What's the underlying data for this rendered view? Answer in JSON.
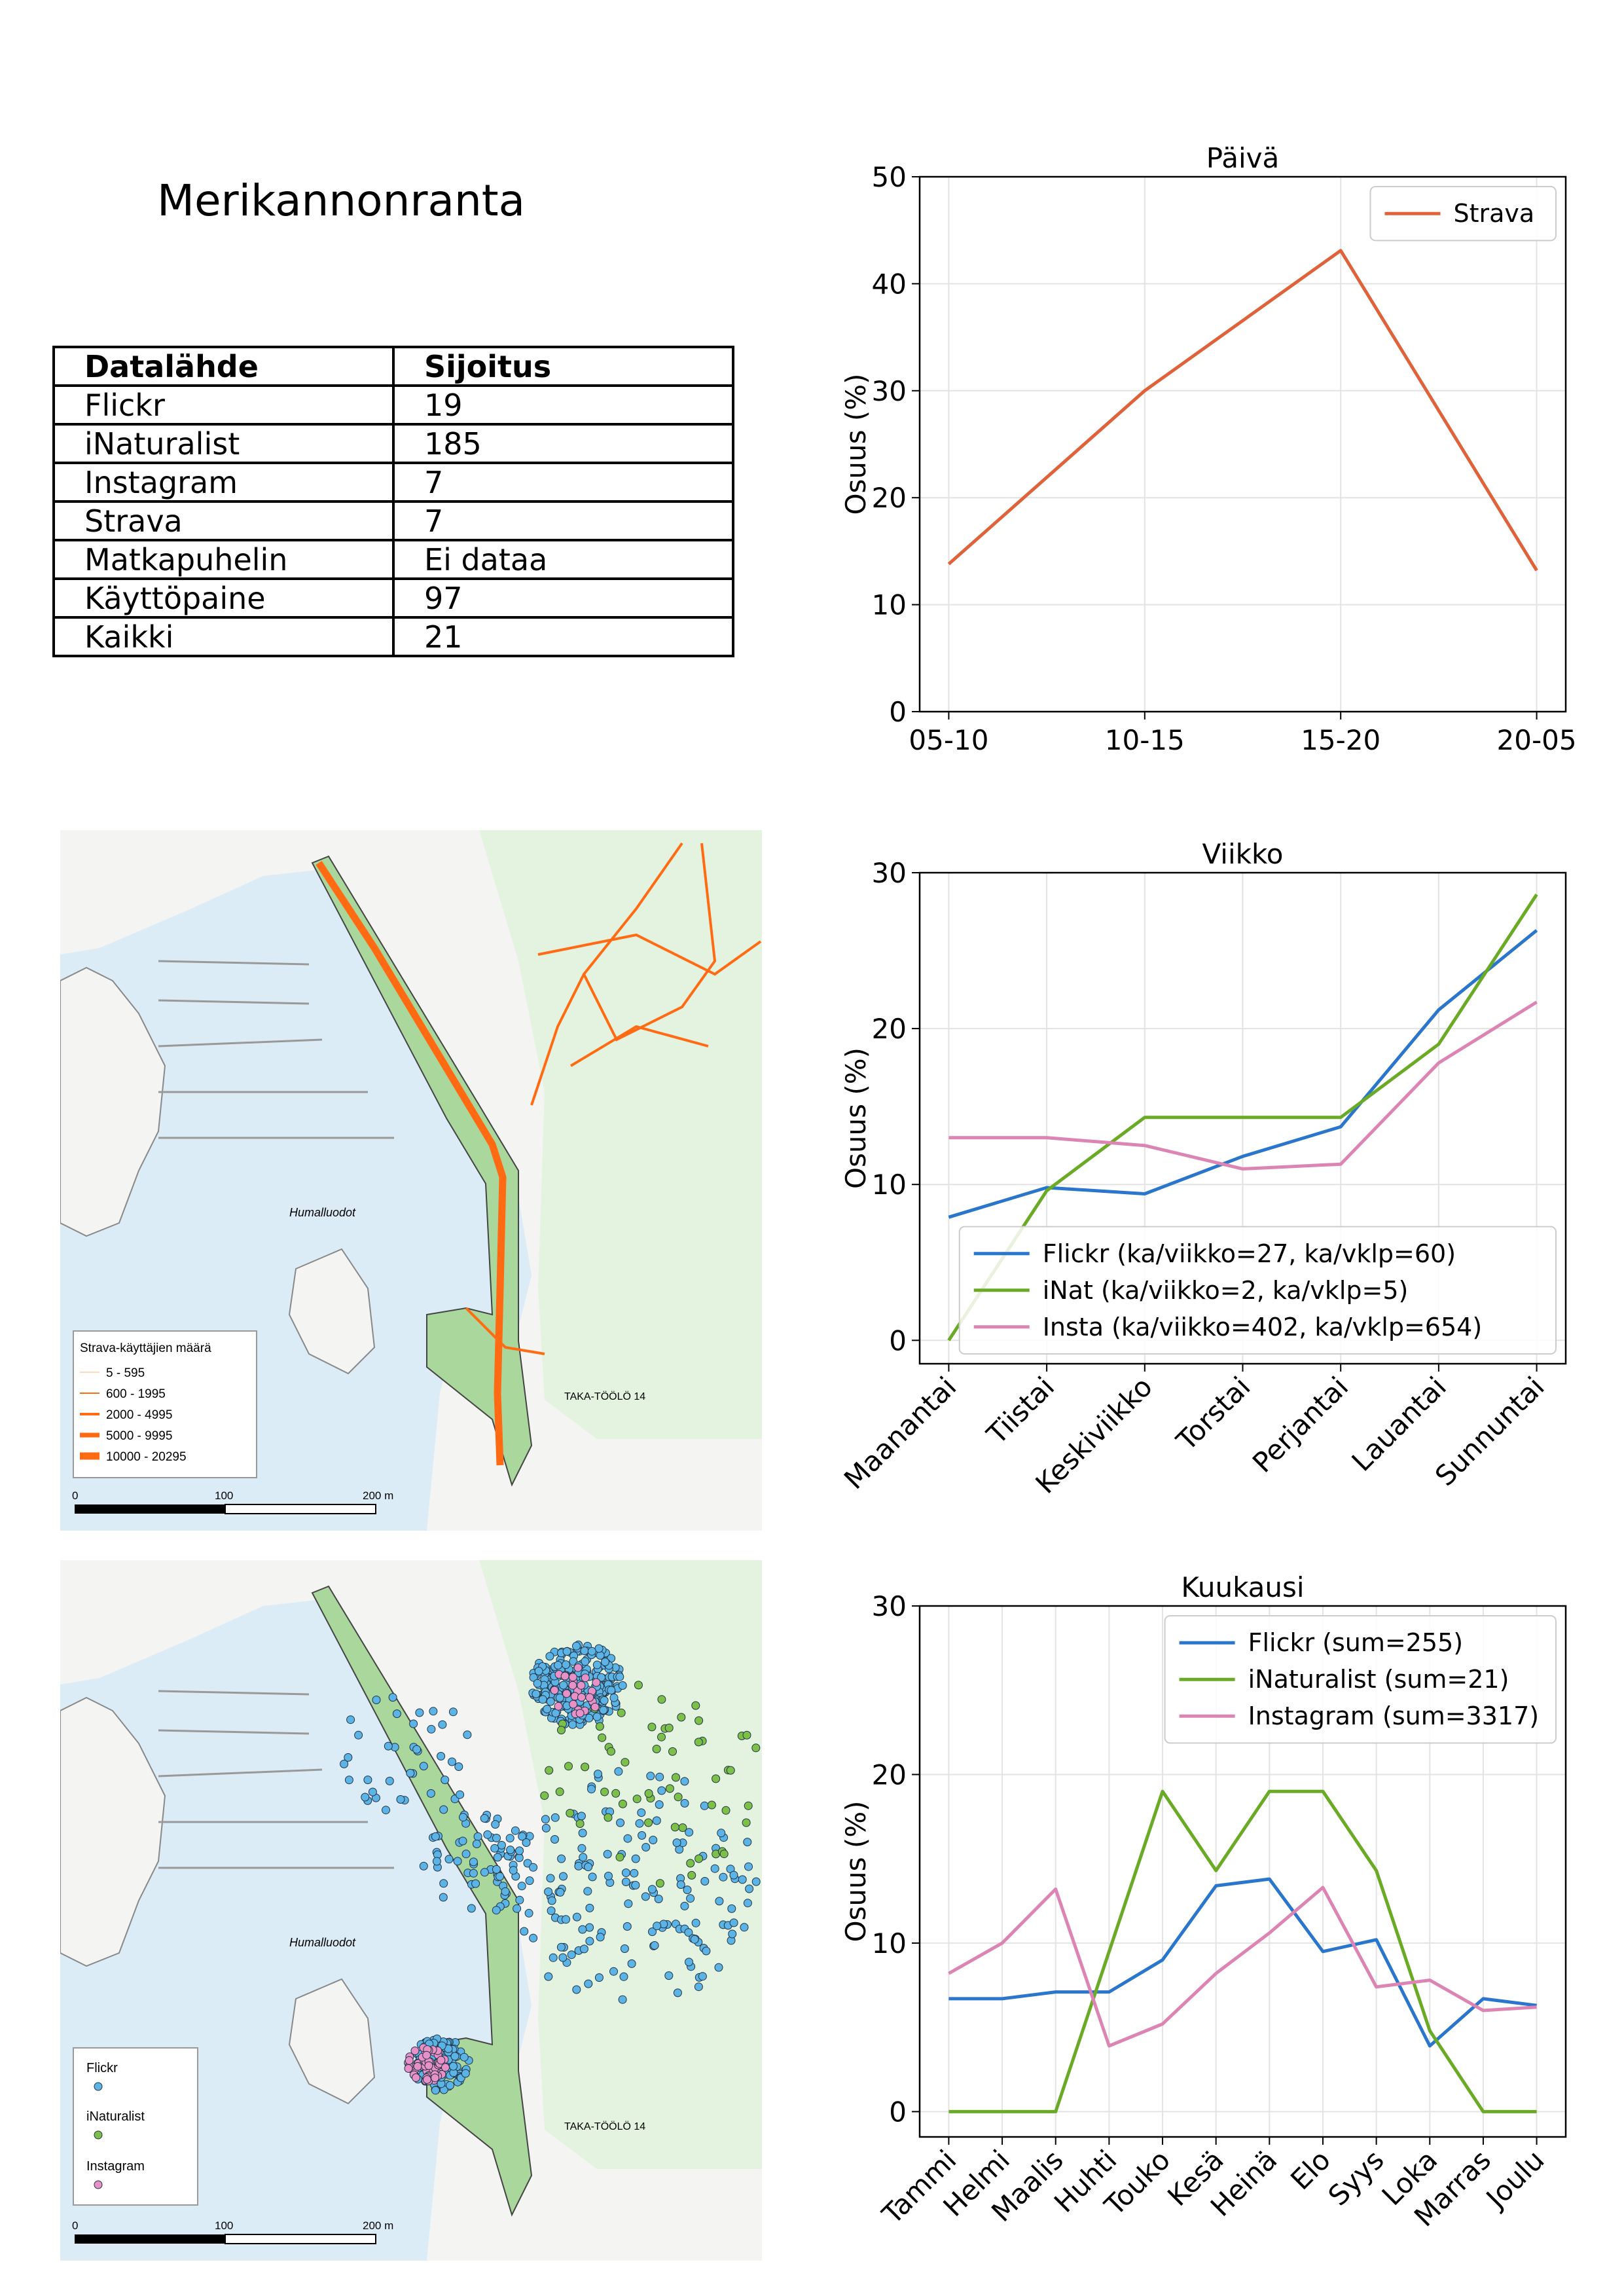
{
  "title": "Merikannonranta",
  "table": {
    "headers": [
      "Datalähde",
      "Sijoitus"
    ],
    "rows": [
      [
        "Flickr",
        "19"
      ],
      [
        "iNaturalist",
        "185"
      ],
      [
        "Instagram",
        "7"
      ],
      [
        "Strava",
        "7"
      ],
      [
        "Matkapuhelin",
        "Ei dataa"
      ],
      [
        "Käyttöpaine",
        "97"
      ],
      [
        "Kaikki",
        "21"
      ]
    ]
  },
  "map_strava": {
    "legend_title": "Strava-käyttäjien määrä",
    "legend_items": [
      "5 - 595",
      "600 - 1995",
      "2000 - 4995",
      "5000 - 9995",
      "10000 - 20295"
    ],
    "scale_labels": [
      "0",
      "100",
      "200 m"
    ],
    "place_labels": [
      "Humalluodot",
      "TAKA-TÖÖLÖ 14"
    ]
  },
  "map_points": {
    "legend_items": [
      "Flickr",
      "iNaturalist",
      "Instagram"
    ],
    "scale_labels": [
      "0",
      "100",
      "200 m"
    ],
    "place_labels": [
      "Humalluodot",
      "TAKA-TÖÖLÖ 14"
    ]
  },
  "colors": {
    "strava": "#e0623a",
    "flickr": "#2a76cc",
    "inat": "#6aaa25",
    "insta": "#dc84b3",
    "route": "#ff6a13",
    "water": "#dcecf7",
    "park": "#e3f3df"
  },
  "chart_data": [
    {
      "type": "line",
      "title": "Päivä",
      "categories": [
        "05-10",
        "10-15",
        "15-20",
        "20-05"
      ],
      "ylabel": "Osuus (%)",
      "ylim": [
        0,
        50
      ],
      "yticks": [
        0,
        10,
        20,
        30,
        40,
        50
      ],
      "grid": true,
      "legend": "top-right",
      "series": [
        {
          "name": "Strava",
          "color": "#e0623a",
          "values": [
            13.8,
            30,
            43.1,
            13.2
          ]
        }
      ]
    },
    {
      "type": "line",
      "title": "Viikko",
      "categories": [
        "Maanantai",
        "Tiistai",
        "Keskiviikko",
        "Torstai",
        "Perjantai",
        "Lauantai",
        "Sunnuntai"
      ],
      "ylabel": "Osuus (%)",
      "ylim": [
        -1.5,
        30
      ],
      "yticks": [
        0,
        10,
        20,
        30
      ],
      "grid": true,
      "legend": "bottom-right",
      "series": [
        {
          "name": "Flickr (ka/viikko=27, ka/vklp=60)",
          "color": "#2a76cc",
          "values": [
            7.9,
            9.8,
            9.4,
            11.8,
            13.7,
            21.2,
            26.3
          ]
        },
        {
          "name": "iNat (ka/viikko=2, ka/vklp=5)",
          "color": "#6aaa25",
          "values": [
            0,
            9.6,
            14.3,
            14.3,
            14.3,
            19.0,
            28.6
          ]
        },
        {
          "name": "Insta (ka/viikko=402, ka/vklp=654)",
          "color": "#dc84b3",
          "values": [
            13.0,
            13.0,
            12.5,
            11.0,
            11.3,
            17.8,
            21.7
          ]
        }
      ]
    },
    {
      "type": "line",
      "title": "Kuukausi",
      "categories": [
        "Tammi",
        "Helmi",
        "Maalis",
        "Huhti",
        "Touko",
        "Kesä",
        "Heinä",
        "Elo",
        "Syys",
        "Loka",
        "Marras",
        "Joulu"
      ],
      "ylabel": "Osuus (%)",
      "ylim": [
        -1.5,
        30
      ],
      "yticks": [
        0,
        10,
        20,
        30
      ],
      "grid": true,
      "legend": "top-right",
      "series": [
        {
          "name": "Flickr (sum=255)",
          "color": "#2a76cc",
          "values": [
            6.7,
            6.7,
            7.1,
            7.1,
            9.0,
            13.4,
            13.8,
            9.5,
            10.2,
            3.9,
            6.7,
            6.3
          ]
        },
        {
          "name": "iNaturalist (sum=21)",
          "color": "#6aaa25",
          "values": [
            0,
            0,
            0,
            9.5,
            19.0,
            14.3,
            19.0,
            19.0,
            14.3,
            4.8,
            0,
            0
          ]
        },
        {
          "name": "Instagram (sum=3317)",
          "color": "#dc84b3",
          "values": [
            8.2,
            10.0,
            13.2,
            3.9,
            5.2,
            8.2,
            10.6,
            13.3,
            7.4,
            7.8,
            6.0,
            6.2
          ]
        }
      ]
    }
  ]
}
